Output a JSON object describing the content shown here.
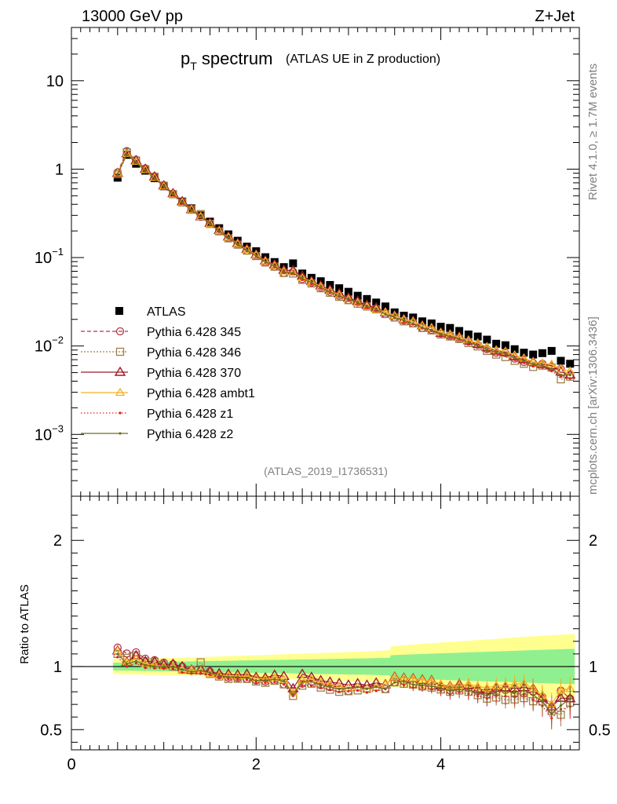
{
  "header": {
    "left": "13000 GeV pp",
    "right": "Z+Jet"
  },
  "title": {
    "main": "p",
    "sub": "T",
    "rest": " spectrum",
    "small": "(ATLAS UE in Z production)"
  },
  "side_texts": {
    "rivet": "Rivet 4.1.0, ≥ 1.7M events",
    "mcplots": "mcplots.cern.ch [arXiv:1306.3436]"
  },
  "analysis_id": "(ATLAS_2019_I1736531)",
  "colors": {
    "atlas": "#000000",
    "p345": "#b5364a",
    "p346": "#a0804a",
    "p370": "#9e1a2c",
    "ambt1": "#f5b021",
    "z1": "#e02020",
    "z2": "#6e6e1e",
    "band_inner": "#90f090",
    "band_outer": "#ffff90"
  },
  "chart_data": [
    {
      "type": "scatter",
      "panel": "main",
      "title": "pT spectrum (ATLAS UE in Z production)",
      "yscale": "log",
      "xlim": [
        0,
        5.5
      ],
      "ylim": [
        0.0002,
        40
      ],
      "yticks": [
        {
          "value": 10,
          "base": "10",
          "exp": ""
        },
        {
          "value": 1,
          "base": "1",
          "exp": ""
        },
        {
          "value": 0.1,
          "base": "10",
          "exp": "−1"
        },
        {
          "value": 0.01,
          "base": "10",
          "exp": "−2"
        },
        {
          "value": 0.001,
          "base": "10",
          "exp": "−3"
        }
      ],
      "x": [
        0.5,
        0.6,
        0.7,
        0.8,
        0.9,
        1.0,
        1.1,
        1.2,
        1.3,
        1.4,
        1.5,
        1.6,
        1.7,
        1.8,
        1.9,
        2.0,
        2.1,
        2.2,
        2.3,
        2.4,
        2.5,
        2.6,
        2.7,
        2.8,
        2.9,
        3.0,
        3.1,
        3.2,
        3.3,
        3.4,
        3.5,
        3.6,
        3.7,
        3.8,
        3.9,
        4.0,
        4.1,
        4.2,
        4.3,
        4.4,
        4.5,
        4.6,
        4.7,
        4.8,
        4.9,
        5.0,
        5.1,
        5.2,
        5.3,
        5.4
      ],
      "series": [
        {
          "name": "ATLAS",
          "key": "atlas",
          "values": [
            0.8,
            1.45,
            1.15,
            0.96,
            0.79,
            0.64,
            0.52,
            0.43,
            0.36,
            0.3,
            0.255,
            0.215,
            0.183,
            0.155,
            0.133,
            0.118,
            0.101,
            0.089,
            0.078,
            0.086,
            0.066,
            0.059,
            0.054,
            0.049,
            0.045,
            0.041,
            0.037,
            0.034,
            0.031,
            0.028,
            0.024,
            0.022,
            0.021,
            0.019,
            0.018,
            0.0165,
            0.016,
            0.0148,
            0.0135,
            0.0128,
            0.0118,
            0.0106,
            0.0102,
            0.0092,
            0.0084,
            0.008,
            0.0083,
            0.0088,
            0.0068,
            0.0063
          ]
        },
        {
          "name": "Pythia 6.428 345",
          "key": "p345",
          "values": [
            0.92,
            1.6,
            1.28,
            1.02,
            0.83,
            0.66,
            0.53,
            0.43,
            0.35,
            0.29,
            0.245,
            0.2,
            0.167,
            0.141,
            0.12,
            0.105,
            0.089,
            0.079,
            0.067,
            0.069,
            0.057,
            0.052,
            0.046,
            0.041,
            0.037,
            0.033,
            0.031,
            0.028,
            0.026,
            0.023,
            0.021,
            0.0195,
            0.018,
            0.016,
            0.0152,
            0.0138,
            0.013,
            0.0122,
            0.0112,
            0.0103,
            0.0092,
            0.0084,
            0.0083,
            0.0072,
            0.0066,
            0.0064,
            0.0063,
            0.0058,
            0.0055,
            0.0047
          ]
        },
        {
          "name": "Pythia 6.428 346",
          "key": "p346",
          "values": [
            0.88,
            1.55,
            1.25,
            1.0,
            0.82,
            0.65,
            0.52,
            0.42,
            0.35,
            0.31,
            0.24,
            0.198,
            0.165,
            0.14,
            0.12,
            0.104,
            0.088,
            0.079,
            0.067,
            0.066,
            0.056,
            0.051,
            0.045,
            0.04,
            0.036,
            0.033,
            0.03,
            0.028,
            0.026,
            0.023,
            0.021,
            0.019,
            0.018,
            0.016,
            0.015,
            0.0135,
            0.0128,
            0.012,
            0.0108,
            0.0099,
            0.0088,
            0.008,
            0.0075,
            0.0068,
            0.0063,
            0.0058,
            0.006,
            0.0057,
            0.0042,
            0.0045
          ]
        },
        {
          "name": "Pythia 6.428 370",
          "key": "p370",
          "values": [
            0.9,
            1.5,
            1.25,
            1.0,
            0.82,
            0.65,
            0.53,
            0.43,
            0.35,
            0.29,
            0.245,
            0.203,
            0.172,
            0.145,
            0.125,
            0.108,
            0.092,
            0.083,
            0.072,
            0.071,
            0.062,
            0.054,
            0.048,
            0.043,
            0.039,
            0.035,
            0.032,
            0.029,
            0.027,
            0.024,
            0.022,
            0.02,
            0.019,
            0.017,
            0.016,
            0.014,
            0.0135,
            0.0127,
            0.0115,
            0.0105,
            0.0096,
            0.0088,
            0.0085,
            0.0076,
            0.007,
            0.0066,
            0.0062,
            0.006,
            0.0051,
            0.0047
          ]
        },
        {
          "name": "Pythia 6.428 ambt1",
          "key": "ambt1",
          "values": [
            0.9,
            1.5,
            1.22,
            0.98,
            0.8,
            0.64,
            0.52,
            0.42,
            0.35,
            0.29,
            0.24,
            0.2,
            0.17,
            0.143,
            0.123,
            0.107,
            0.091,
            0.081,
            0.07,
            0.068,
            0.059,
            0.053,
            0.047,
            0.042,
            0.038,
            0.034,
            0.031,
            0.028,
            0.026,
            0.024,
            0.022,
            0.02,
            0.019,
            0.017,
            0.016,
            0.0142,
            0.0135,
            0.0126,
            0.0116,
            0.0108,
            0.0098,
            0.009,
            0.0087,
            0.0079,
            0.0073,
            0.0066,
            0.0064,
            0.0062,
            0.0055,
            0.0052
          ]
        },
        {
          "name": "Pythia 6.428 z1",
          "key": "z1",
          "values": [
            0.86,
            1.45,
            1.18,
            0.95,
            0.78,
            0.63,
            0.51,
            0.41,
            0.34,
            0.285,
            0.238,
            0.196,
            0.165,
            0.139,
            0.119,
            0.103,
            0.088,
            0.078,
            0.067,
            0.066,
            0.056,
            0.05,
            0.045,
            0.04,
            0.036,
            0.033,
            0.03,
            0.027,
            0.025,
            0.023,
            0.021,
            0.0188,
            0.0175,
            0.0158,
            0.0148,
            0.0133,
            0.0125,
            0.0118,
            0.0106,
            0.0098,
            0.0088,
            0.0082,
            0.0078,
            0.007,
            0.0065,
            0.0059,
            0.0057,
            0.0052,
            0.0045,
            0.0043
          ]
        },
        {
          "name": "Pythia 6.428 z2",
          "key": "z2",
          "values": [
            0.88,
            1.48,
            1.2,
            0.97,
            0.79,
            0.64,
            0.52,
            0.42,
            0.345,
            0.29,
            0.242,
            0.2,
            0.168,
            0.142,
            0.121,
            0.105,
            0.09,
            0.08,
            0.069,
            0.067,
            0.058,
            0.052,
            0.046,
            0.041,
            0.037,
            0.034,
            0.031,
            0.028,
            0.026,
            0.023,
            0.021,
            0.0194,
            0.018,
            0.0162,
            0.0152,
            0.0137,
            0.0129,
            0.0121,
            0.011,
            0.0101,
            0.0091,
            0.0085,
            0.0082,
            0.0073,
            0.0068,
            0.0062,
            0.006,
            0.0055,
            0.0047,
            0.0047
          ]
        }
      ]
    },
    {
      "type": "line",
      "panel": "ratio",
      "ylabel": "Ratio to ATLAS",
      "xlabel": "",
      "xlim": [
        0,
        5.5
      ],
      "ylim": [
        0.34,
        2.35
      ],
      "xticks": [
        "0",
        "2",
        "4"
      ],
      "yticks": [
        "0.5",
        "1",
        "2"
      ],
      "band_x": [
        0.45,
        0.8,
        1.2,
        1.6,
        2.0,
        2.4,
        2.8,
        3.2,
        3.45,
        3.46,
        3.8,
        4.2,
        4.6,
        5.0,
        5.45
      ],
      "band_inner_half": [
        0.03,
        0.035,
        0.04,
        0.045,
        0.05,
        0.055,
        0.06,
        0.065,
        0.07,
        0.09,
        0.1,
        0.11,
        0.12,
        0.13,
        0.14
      ],
      "band_outer_half": [
        0.06,
        0.065,
        0.07,
        0.08,
        0.09,
        0.1,
        0.11,
        0.12,
        0.13,
        0.16,
        0.18,
        0.2,
        0.22,
        0.24,
        0.26
      ],
      "reference": 1
    }
  ]
}
